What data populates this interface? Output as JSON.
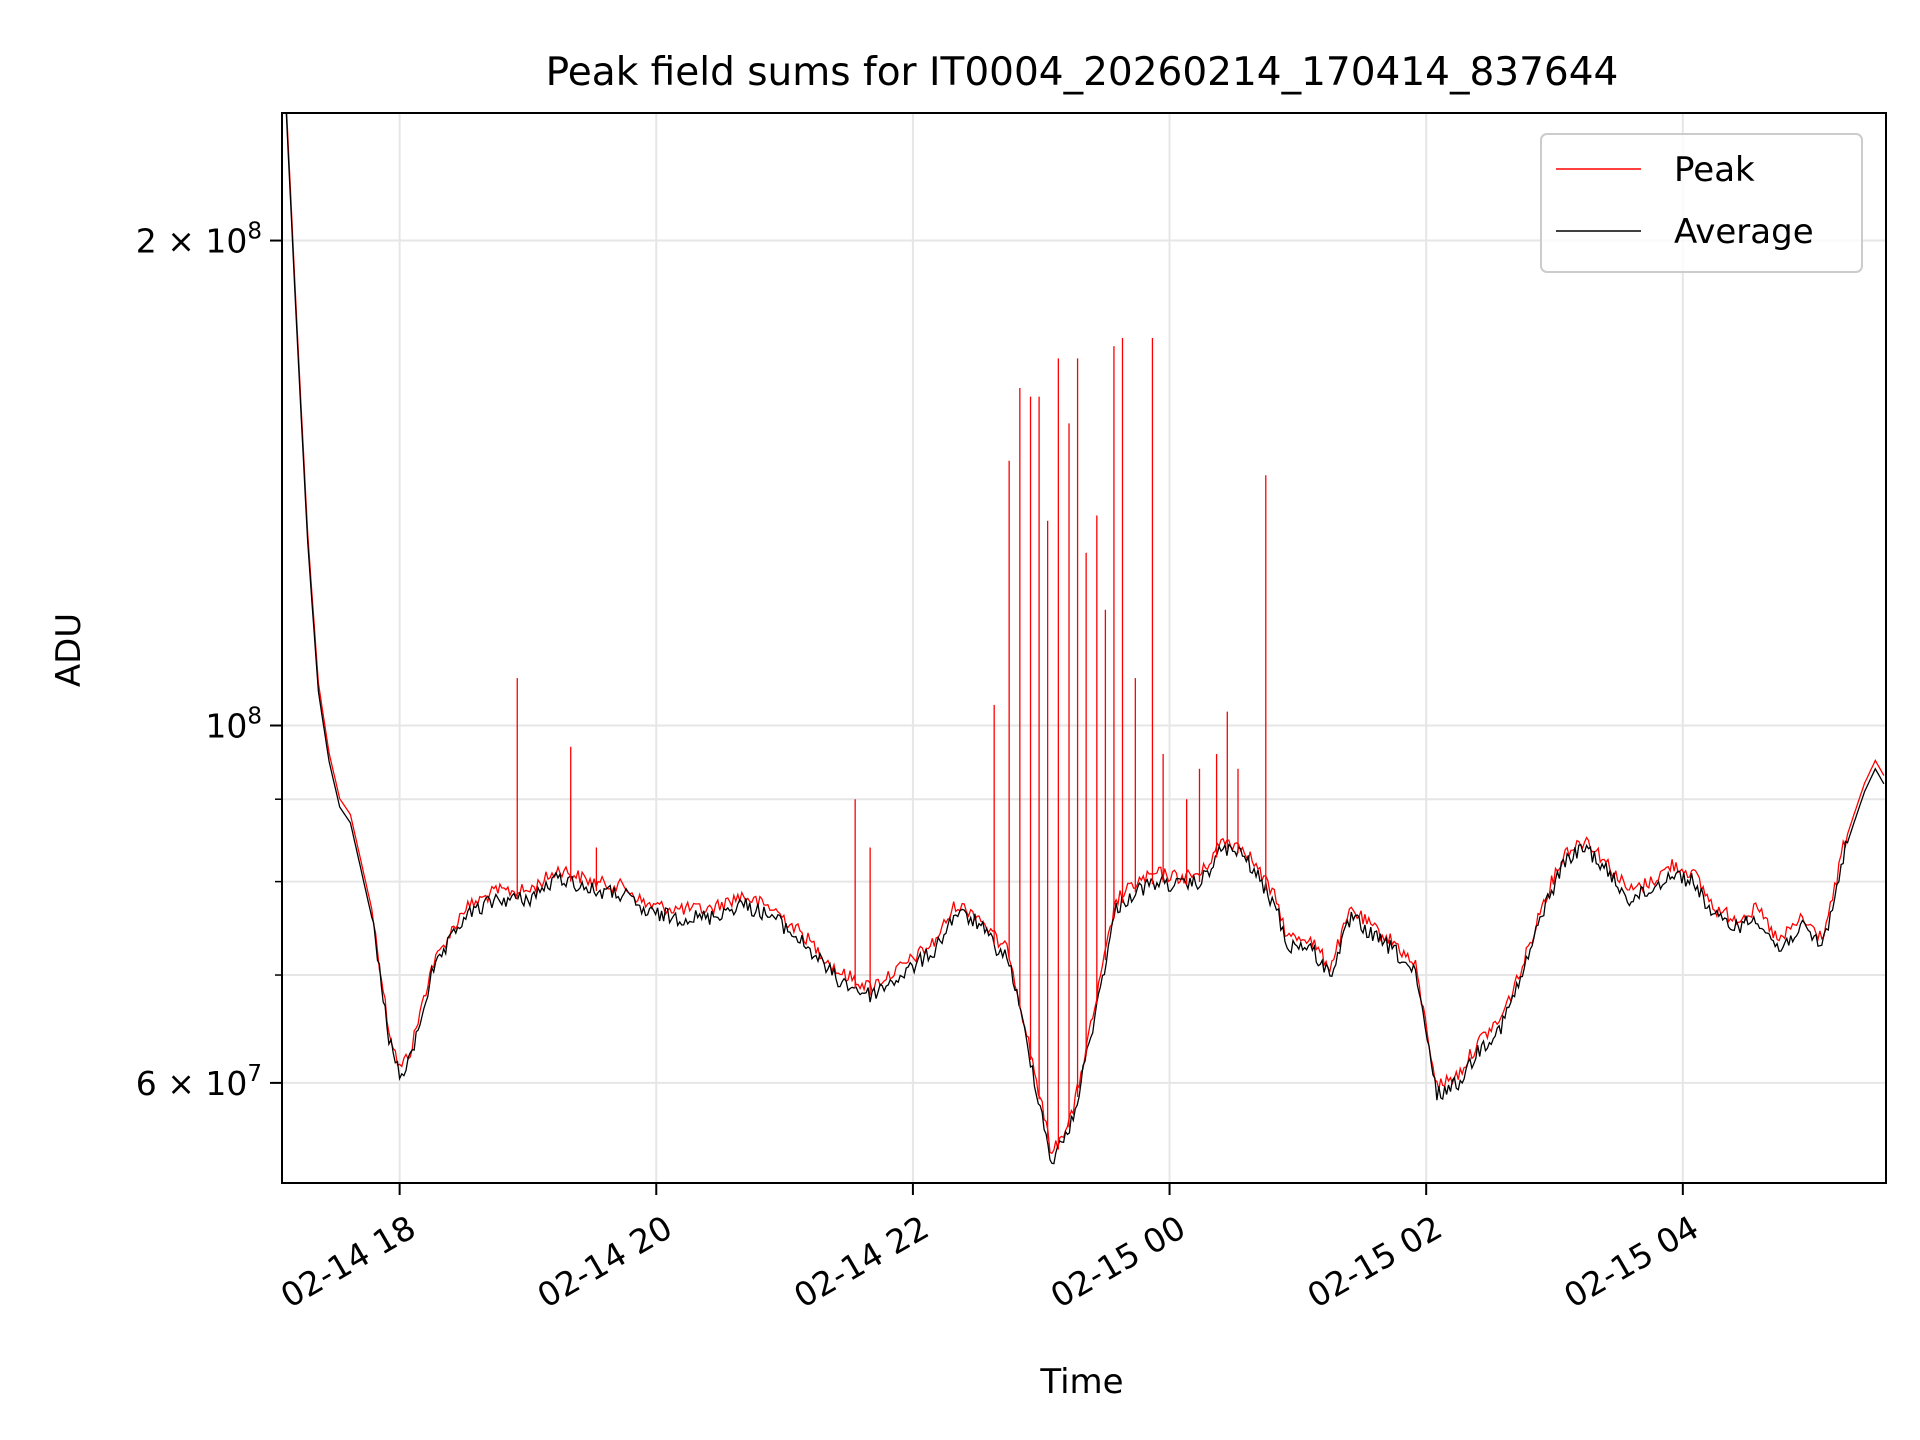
{
  "chart_data": {
    "type": "line",
    "title": "Peak field sums for IT0004_20260214_170414_837644",
    "xlabel": "Time",
    "ylabel": "ADU",
    "y_scale": "log",
    "grid": true,
    "legend_position": "top-right",
    "xlim": [
      "2026-02-14 17:05",
      "2026-02-15 05:35"
    ],
    "ylim": [
      52000000,
      240000000
    ],
    "x_ticks": [
      {
        "value": "2026-02-14 18:00",
        "label": "02-14 18"
      },
      {
        "value": "2026-02-14 20:00",
        "label": "02-14 20"
      },
      {
        "value": "2026-02-14 22:00",
        "label": "02-14 22"
      },
      {
        "value": "2026-02-15 00:00",
        "label": "02-15 00"
      },
      {
        "value": "2026-02-15 02:00",
        "label": "02-15 02"
      },
      {
        "value": "2026-02-15 04:00",
        "label": "02-15 04"
      }
    ],
    "y_major_ticks": [
      {
        "value": 60000000,
        "label_base": "6 × 10",
        "label_exp": "7"
      },
      {
        "value": 100000000,
        "label_base": "10",
        "label_exp": "8"
      },
      {
        "value": 200000000,
        "label_base": "2 × 10",
        "label_exp": "8"
      }
    ],
    "y_minor_ticks": [
      70000000,
      80000000,
      90000000
    ],
    "series": [
      {
        "name": "Average",
        "color": "#000000",
        "x": [
          "2026-02-14 17:07",
          "2026-02-14 17:12",
          "2026-02-14 17:17",
          "2026-02-14 17:22",
          "2026-02-14 17:27",
          "2026-02-14 17:32",
          "2026-02-14 17:37",
          "2026-02-14 17:47",
          "2026-02-14 17:55",
          "2026-02-14 18:00",
          "2026-02-14 18:05",
          "2026-02-14 18:15",
          "2026-02-14 18:30",
          "2026-02-14 18:45",
          "2026-02-14 19:00",
          "2026-02-14 19:15",
          "2026-02-14 19:30",
          "2026-02-14 19:45",
          "2026-02-14 19:55",
          "2026-02-14 20:10",
          "2026-02-14 20:25",
          "2026-02-14 20:40",
          "2026-02-14 20:55",
          "2026-02-14 21:10",
          "2026-02-14 21:25",
          "2026-02-14 21:40",
          "2026-02-14 21:55",
          "2026-02-14 22:10",
          "2026-02-14 22:20",
          "2026-02-14 22:25",
          "2026-02-14 22:30",
          "2026-02-14 22:40",
          "2026-02-14 22:45",
          "2026-02-14 22:55",
          "2026-02-14 23:05",
          "2026-02-14 23:15",
          "2026-02-14 23:25",
          "2026-02-14 23:35",
          "2026-02-14 23:45",
          "2026-02-14 23:55",
          "2026-02-15 00:05",
          "2026-02-15 00:15",
          "2026-02-15 00:25",
          "2026-02-15 00:35",
          "2026-02-15 00:45",
          "2026-02-15 00:50",
          "2026-02-15 00:55",
          "2026-02-15 01:05",
          "2026-02-15 01:15",
          "2026-02-15 01:25",
          "2026-02-15 01:35",
          "2026-02-15 01:45",
          "2026-02-15 01:55",
          "2026-02-15 02:05",
          "2026-02-15 02:15",
          "2026-02-15 02:25",
          "2026-02-15 02:35",
          "2026-02-15 02:45",
          "2026-02-15 02:55",
          "2026-02-15 03:05",
          "2026-02-15 03:15",
          "2026-02-15 03:25",
          "2026-02-15 03:35",
          "2026-02-15 03:45",
          "2026-02-15 03:55",
          "2026-02-15 04:05",
          "2026-02-15 04:15",
          "2026-02-15 04:25",
          "2026-02-15 04:35",
          "2026-02-15 04:45",
          "2026-02-15 04:55",
          "2026-02-15 05:05",
          "2026-02-15 05:10",
          "2026-02-15 05:15",
          "2026-02-15 05:20",
          "2026-02-15 05:25",
          "2026-02-15 05:30",
          "2026-02-15 05:34"
        ],
        "y": [
          240000000,
          175000000,
          130000000,
          105000000,
          95000000,
          89000000,
          87000000,
          76000000,
          64000000,
          60500000,
          62000000,
          70000000,
          76000000,
          78000000,
          78000000,
          80500000,
          79000000,
          78500000,
          76500000,
          76000000,
          76000000,
          77500000,
          76000000,
          73000000,
          69500000,
          68000000,
          70000000,
          72500000,
          76500000,
          76000000,
          75500000,
          72500000,
          71500000,
          62000000,
          53500000,
          57000000,
          66000000,
          77000000,
          79000000,
          80000000,
          79500000,
          80000000,
          84000000,
          83000000,
          79000000,
          77000000,
          73000000,
          73000000,
          70000000,
          76000000,
          74000000,
          72500000,
          70000000,
          59000000,
          60000000,
          63000000,
          65000000,
          70000000,
          77000000,
          82500000,
          84000000,
          81000000,
          78000000,
          79000000,
          81000000,
          80000000,
          76000000,
          75000000,
          76000000,
          72500000,
          75000000,
          73000000,
          77000000,
          83000000,
          87000000,
          91000000,
          94000000,
          92000000
        ]
      },
      {
        "name": "Peak",
        "color": "#ff0000",
        "spikes": [
          {
            "x": "2026-02-14 18:55",
            "y": 107000000
          },
          {
            "x": "2026-02-14 19:20",
            "y": 97000000
          },
          {
            "x": "2026-02-14 19:32",
            "y": 84000000
          },
          {
            "x": "2026-02-14 21:33",
            "y": 90000000
          },
          {
            "x": "2026-02-14 21:40",
            "y": 84000000
          },
          {
            "x": "2026-02-14 22:38",
            "y": 103000000
          },
          {
            "x": "2026-02-14 22:45",
            "y": 146000000
          },
          {
            "x": "2026-02-14 22:50",
            "y": 162000000
          },
          {
            "x": "2026-02-14 22:55",
            "y": 160000000
          },
          {
            "x": "2026-02-14 22:59",
            "y": 160000000
          },
          {
            "x": "2026-02-14 23:03",
            "y": 134000000
          },
          {
            "x": "2026-02-14 23:08",
            "y": 169000000
          },
          {
            "x": "2026-02-14 23:13",
            "y": 154000000
          },
          {
            "x": "2026-02-14 23:17",
            "y": 169000000
          },
          {
            "x": "2026-02-14 23:21",
            "y": 128000000
          },
          {
            "x": "2026-02-14 23:26",
            "y": 135000000
          },
          {
            "x": "2026-02-14 23:30",
            "y": 118000000
          },
          {
            "x": "2026-02-14 23:34",
            "y": 172000000
          },
          {
            "x": "2026-02-14 23:38",
            "y": 174000000
          },
          {
            "x": "2026-02-14 23:44",
            "y": 107000000
          },
          {
            "x": "2026-02-14 23:52",
            "y": 174000000
          },
          {
            "x": "2026-02-14 23:57",
            "y": 96000000
          },
          {
            "x": "2026-02-15 00:08",
            "y": 90000000
          },
          {
            "x": "2026-02-15 00:14",
            "y": 94000000
          },
          {
            "x": "2026-02-15 00:22",
            "y": 96000000
          },
          {
            "x": "2026-02-15 00:27",
            "y": 102000000
          },
          {
            "x": "2026-02-15 00:32",
            "y": 94000000
          },
          {
            "x": "2026-02-15 00:45",
            "y": 143000000
          }
        ]
      }
    ]
  }
}
